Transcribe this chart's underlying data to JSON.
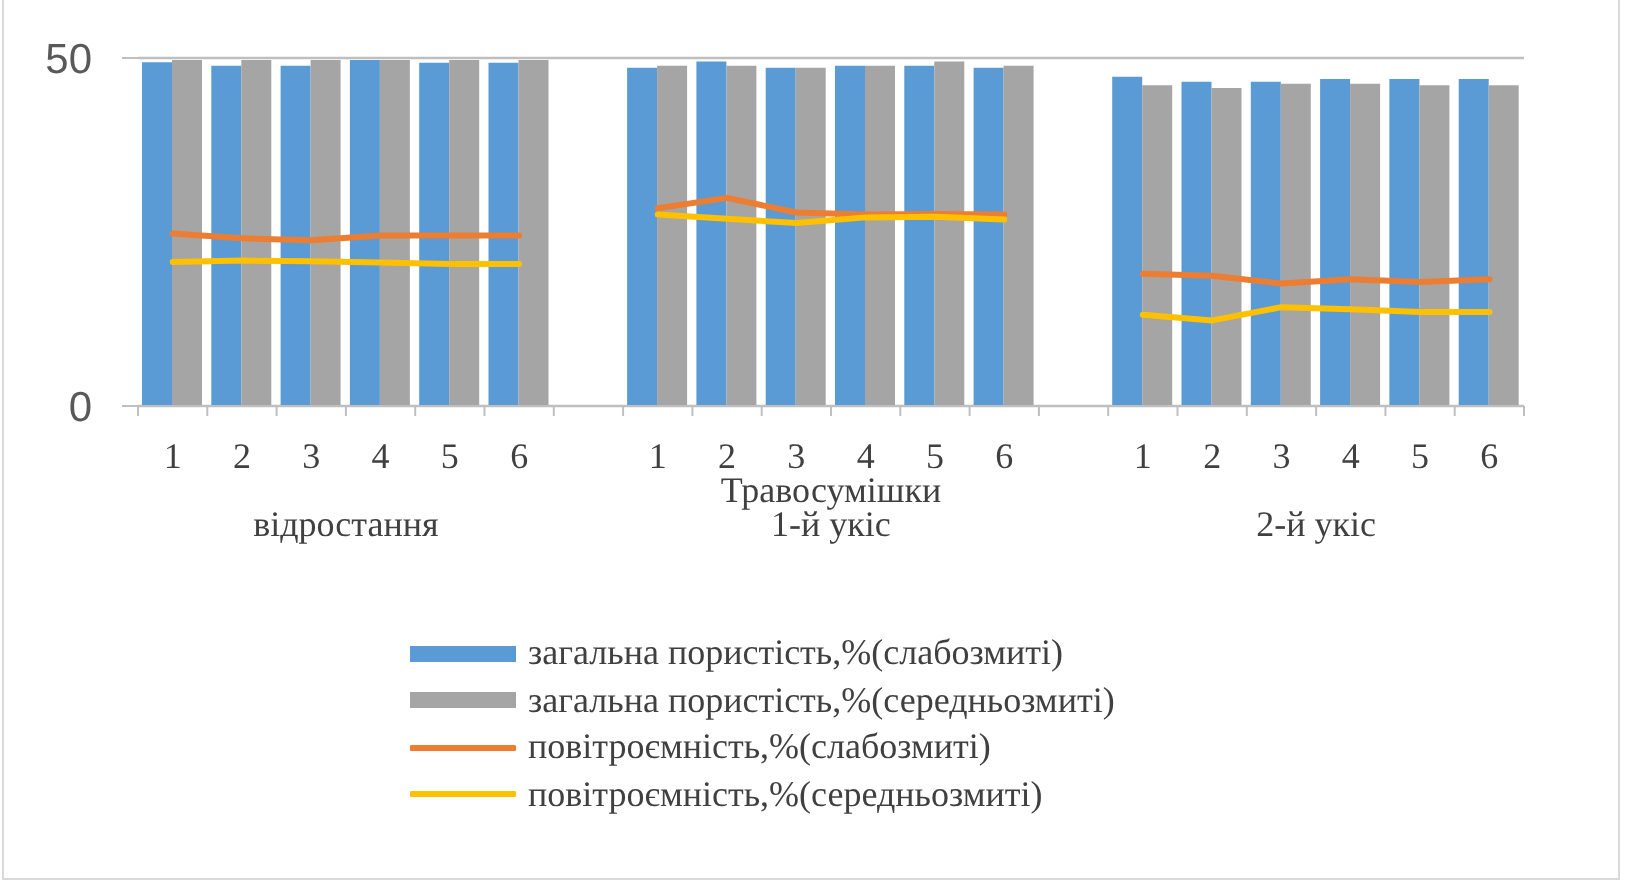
{
  "chart_data": {
    "type": "bar",
    "xlabel": "Травосумішки",
    "annotations": [
      "відростання",
      "1-й укіс",
      "2-й укіс"
    ],
    "categories": [
      "1",
      "2",
      "3",
      "4",
      "5",
      "6",
      null,
      "1",
      "2",
      "3",
      "4",
      "5",
      "6",
      null,
      "1",
      "2",
      "3",
      "4",
      "5",
      "6"
    ],
    "series": [
      {
        "name": "загальна пористість,%(слабозмиті)",
        "color": "#5b9bd5",
        "values": [
          49.4,
          48.9,
          48.9,
          49.7,
          49.3,
          49.3,
          null,
          48.6,
          49.5,
          48.6,
          48.9,
          48.9,
          48.6,
          null,
          47.3,
          46.6,
          46.6,
          47.0,
          47.0,
          47.0
        ]
      },
      {
        "name": "загальна пористість,%(середньозмиті)",
        "color": "#a5a5a5",
        "values": [
          49.7,
          49.7,
          49.7,
          49.7,
          49.7,
          49.7,
          null,
          48.9,
          48.9,
          48.6,
          48.9,
          49.5,
          48.9,
          null,
          46.1,
          45.7,
          46.3,
          46.3,
          46.1,
          46.1
        ]
      },
      {
        "type": "line",
        "name": "повітроємність,%(слабозмиті)",
        "color": "#ed7d31",
        "values": [
          24.8,
          24.1,
          23.8,
          24.5,
          24.5,
          24.5,
          null,
          28.4,
          29.9,
          27.8,
          27.5,
          27.6,
          27.5,
          null,
          19.0,
          18.7,
          17.6,
          18.2,
          17.8,
          18.2
        ]
      },
      {
        "type": "line",
        "name": "повітроємність,%(середньозмиті)",
        "color": "#ffc000",
        "values": [
          20.7,
          20.9,
          20.8,
          20.6,
          20.4,
          20.4,
          null,
          27.5,
          26.9,
          26.3,
          27.1,
          27.2,
          26.8,
          null,
          13.1,
          12.3,
          14.2,
          13.9,
          13.5,
          13.5
        ]
      }
    ],
    "ylim": [
      0,
      50
    ],
    "yticks": [
      0,
      50
    ],
    "grid": "y",
    "legend": "bottom"
  }
}
